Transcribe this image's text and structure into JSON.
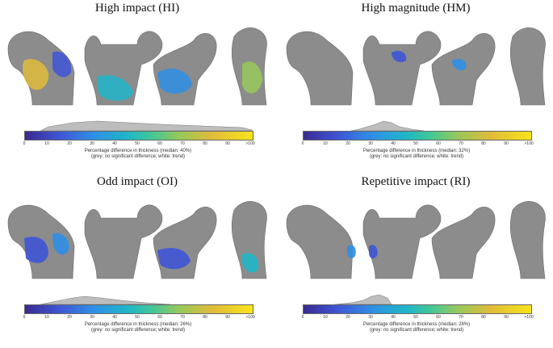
{
  "panels": [
    {
      "title": "High impact (HI)",
      "caption": "Percentage difference in thickness (median: 40%)",
      "note": "(grey: no significant difference; white: trend)"
    },
    {
      "title": "High magnitude (HM)",
      "caption": "Percentage difference in thickness (median: 32%)",
      "note": "(grey: no significant difference; white: trend)"
    },
    {
      "title": "Odd impact (OI)",
      "caption": "Percentage difference in thickness (median: 26%)",
      "note": "(grey: no significant difference; white: trend)"
    },
    {
      "title": "Repetitive impact (RI)",
      "caption": "Percentage difference in thickness (median: 28%)",
      "note": "(grey: no significant difference; white: trend)"
    }
  ],
  "ticks": [
    "0",
    "10",
    "20",
    "30",
    "40",
    "50",
    "60",
    "70",
    "80",
    "90",
    ">100"
  ],
  "colors": {
    "bone": "#8a8a8a",
    "trend": "#f2f2f2",
    "low": "#3b2a8f",
    "high": "#f9e418"
  }
}
